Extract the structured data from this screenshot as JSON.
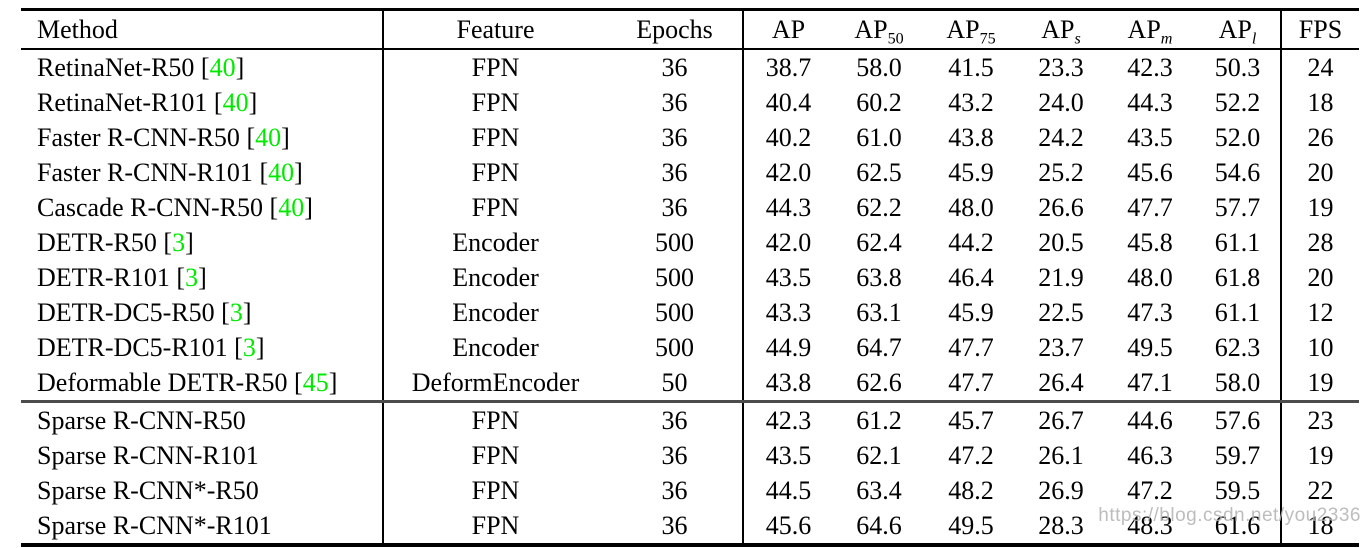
{
  "colors": {
    "citation_green": "#00EA00",
    "rule_black": "#000000",
    "section_rule_gray": "#4c4c4c",
    "watermark_gray": "#b2b2b2"
  },
  "citation_format": {
    "open": " [",
    "close": "]"
  },
  "watermark": {
    "text": "https://blog.csdn.net/you2336"
  },
  "table": {
    "columns": [
      {
        "label": "Method",
        "sub": null
      },
      {
        "label": "Feature",
        "sub": null
      },
      {
        "label": "Epochs",
        "sub": null
      },
      {
        "label": "AP",
        "sub": null
      },
      {
        "label": "AP",
        "sub": "50"
      },
      {
        "label": "AP",
        "sub": "75"
      },
      {
        "label": "AP",
        "sub": "s"
      },
      {
        "label": "AP",
        "sub": "m"
      },
      {
        "label": "AP",
        "sub": "l"
      },
      {
        "label": "FPS",
        "sub": null
      }
    ],
    "rows": [
      {
        "method": "RetinaNet-R50",
        "cite": "40",
        "feature": "FPN",
        "epochs": "36",
        "values": [
          "38.7",
          "58.0",
          "41.5",
          "23.3",
          "42.3",
          "50.3"
        ],
        "bold": [],
        "fps": "24",
        "section_start": false
      },
      {
        "method": "RetinaNet-R101",
        "cite": "40",
        "feature": "FPN",
        "epochs": "36",
        "values": [
          "40.4",
          "60.2",
          "43.2",
          "24.0",
          "44.3",
          "52.2"
        ],
        "bold": [],
        "fps": "18",
        "section_start": false
      },
      {
        "method": "Faster R-CNN-R50",
        "cite": "40",
        "feature": "FPN",
        "epochs": "36",
        "values": [
          "40.2",
          "61.0",
          "43.8",
          "24.2",
          "43.5",
          "52.0"
        ],
        "bold": [],
        "fps": "26",
        "section_start": false
      },
      {
        "method": "Faster R-CNN-R101",
        "cite": "40",
        "feature": "FPN",
        "epochs": "36",
        "values": [
          "42.0",
          "62.5",
          "45.9",
          "25.2",
          "45.6",
          "54.6"
        ],
        "bold": [],
        "fps": "20",
        "section_start": false
      },
      {
        "method": "Cascade R-CNN-R50",
        "cite": "40",
        "feature": "FPN",
        "epochs": "36",
        "values": [
          "44.3",
          "62.2",
          "48.0",
          "26.6",
          "47.7",
          "57.7"
        ],
        "bold": [],
        "fps": "19",
        "section_start": false
      },
      {
        "method": "DETR-R50",
        "cite": "3",
        "feature": "Encoder",
        "epochs": "500",
        "values": [
          "42.0",
          "62.4",
          "44.2",
          "20.5",
          "45.8",
          "61.1"
        ],
        "bold": [],
        "fps": "28",
        "section_start": false
      },
      {
        "method": "DETR-R101",
        "cite": "3",
        "feature": "Encoder",
        "epochs": "500",
        "values": [
          "43.5",
          "63.8",
          "46.4",
          "21.9",
          "48.0",
          "61.8"
        ],
        "bold": [],
        "fps": "20",
        "section_start": false
      },
      {
        "method": "DETR-DC5-R50",
        "cite": "3",
        "feature": "Encoder",
        "epochs": "500",
        "values": [
          "43.3",
          "63.1",
          "45.9",
          "22.5",
          "47.3",
          "61.1"
        ],
        "bold": [],
        "fps": "12",
        "section_start": false
      },
      {
        "method": "DETR-DC5-R101",
        "cite": "3",
        "feature": "Encoder",
        "epochs": "500",
        "values": [
          "44.9",
          "64.7",
          "47.7",
          "23.7",
          "49.5",
          "62.3"
        ],
        "bold": [
          1,
          4,
          5
        ],
        "fps": "10",
        "section_start": false
      },
      {
        "method": "Deformable DETR-R50",
        "cite": "45",
        "feature": "DeformEncoder",
        "epochs": "50",
        "values": [
          "43.8",
          "62.6",
          "47.7",
          "26.4",
          "47.1",
          "58.0"
        ],
        "bold": [],
        "fps": "19",
        "section_start": false
      },
      {
        "method": "Sparse R-CNN-R50",
        "cite": null,
        "feature": "FPN",
        "epochs": "36",
        "values": [
          "42.3",
          "61.2",
          "45.7",
          "26.7",
          "44.6",
          "57.6"
        ],
        "bold": [],
        "fps": "23",
        "section_start": true
      },
      {
        "method": "Sparse R-CNN-R101",
        "cite": null,
        "feature": "FPN",
        "epochs": "36",
        "values": [
          "43.5",
          "62.1",
          "47.2",
          "26.1",
          "46.3",
          "59.7"
        ],
        "bold": [],
        "fps": "19",
        "section_start": false
      },
      {
        "method": "Sparse R-CNN*-R50",
        "cite": null,
        "feature": "FPN",
        "epochs": "36",
        "values": [
          "44.5",
          "63.4",
          "48.2",
          "26.9",
          "47.2",
          "59.5"
        ],
        "bold": [],
        "fps": "22",
        "section_start": false
      },
      {
        "method": "Sparse R-CNN*-R101",
        "cite": null,
        "feature": "FPN",
        "epochs": "36",
        "values": [
          "45.6",
          "64.6",
          "49.5",
          "28.3",
          "48.3",
          "61.6"
        ],
        "bold": [
          0,
          2,
          3
        ],
        "fps": "18",
        "section_start": false
      }
    ]
  }
}
